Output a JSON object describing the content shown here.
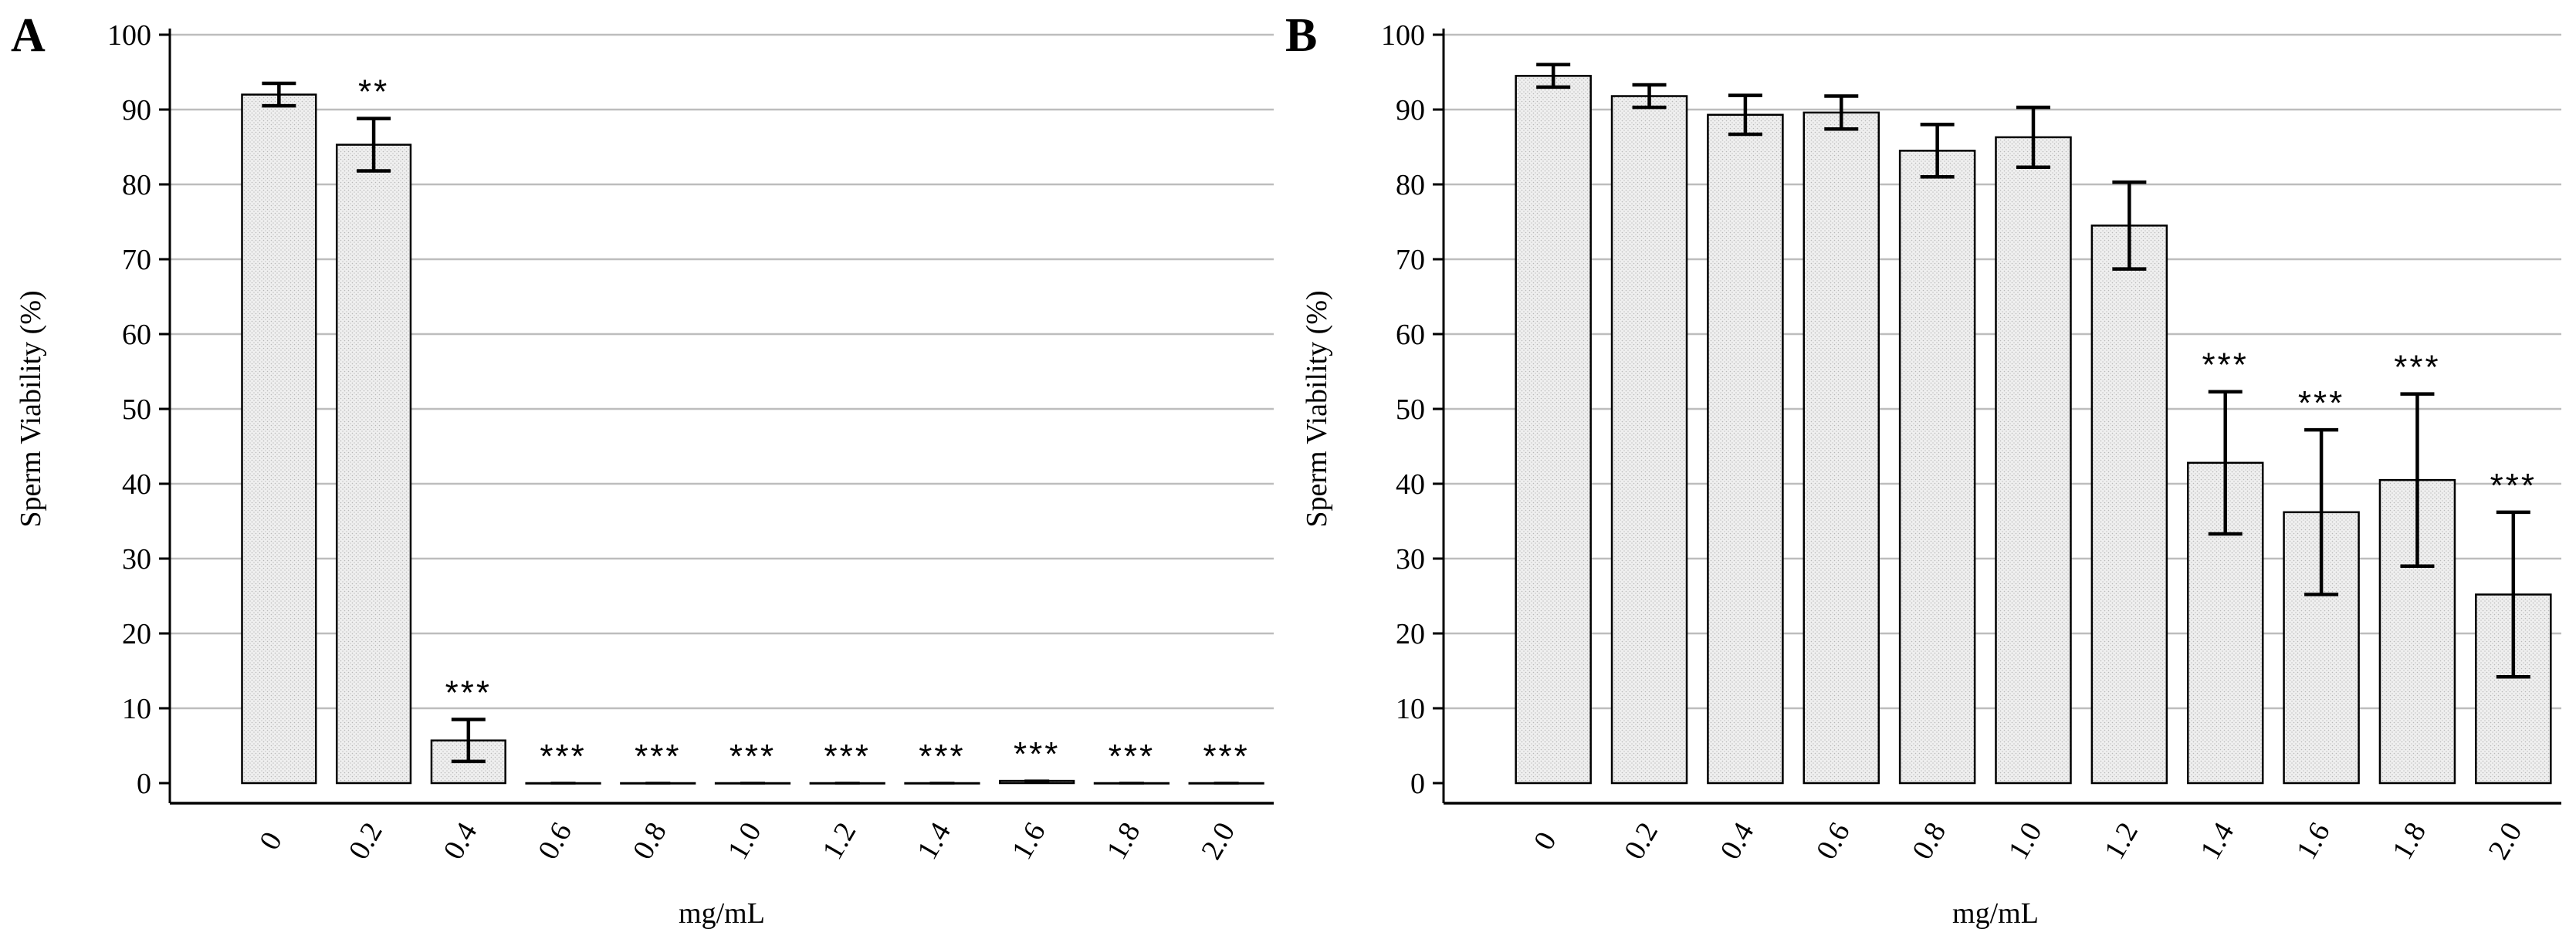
{
  "chart_data": [
    {
      "panel": "A",
      "type": "bar",
      "categories": [
        "0",
        "0.2",
        "0.4",
        "0.6",
        "0.8",
        "1.0",
        "1.2",
        "1.4",
        "1.6",
        "1.8",
        "2.0"
      ],
      "values": [
        92,
        85.3,
        5.7,
        0,
        0,
        0,
        0,
        0,
        0.3,
        0,
        0
      ],
      "errors": [
        1.5,
        3.5,
        2.8,
        0,
        0,
        0,
        0,
        0,
        0,
        0,
        0
      ],
      "significance": [
        "",
        "**",
        "***",
        "***",
        "***",
        "***",
        "***",
        "***",
        "***",
        "***",
        "***"
      ],
      "xlabel": "mg/mL",
      "ylabel": "Sperm Viability (%)",
      "ylim": [
        0,
        100
      ],
      "yticks": [
        0,
        10,
        20,
        30,
        40,
        50,
        60,
        70,
        80,
        90,
        100
      ],
      "grid": true
    },
    {
      "panel": "B",
      "type": "bar",
      "categories": [
        "0",
        "0.2",
        "0.4",
        "0.6",
        "0.8",
        "1.0",
        "1.2",
        "1.4",
        "1.6",
        "1.8",
        "2.0"
      ],
      "values": [
        94.5,
        91.8,
        89.3,
        89.6,
        84.5,
        86.3,
        74.5,
        42.8,
        36.2,
        40.5,
        25.2
      ],
      "errors": [
        1.5,
        1.5,
        2.6,
        2.2,
        3.5,
        4.0,
        5.8,
        9.5,
        11.0,
        11.5,
        11.0
      ],
      "significance": [
        "",
        "",
        "",
        "",
        "",
        "",
        "",
        "***",
        "***",
        "***",
        "***"
      ],
      "xlabel": "mg/mL",
      "ylabel": "Sperm Viability (%)",
      "ylim": [
        0,
        100
      ],
      "yticks": [
        0,
        10,
        20,
        30,
        40,
        50,
        60,
        70,
        80,
        90,
        100
      ],
      "grid": true
    }
  ],
  "colors": {
    "bar_fill": "#efefef",
    "bar_stroke": "#000000",
    "grid": "#bdbdbd",
    "axis": "#000000"
  }
}
